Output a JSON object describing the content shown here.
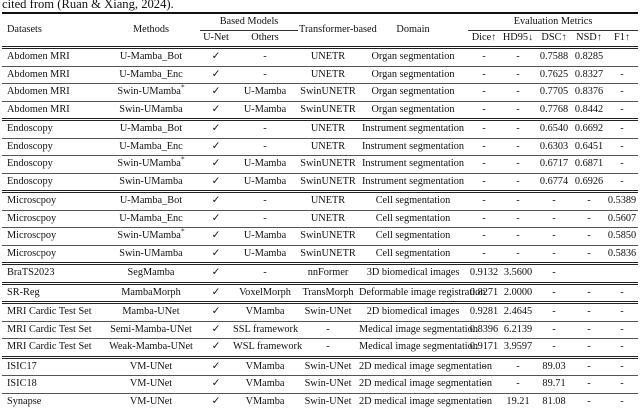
{
  "caption": "cited from (Ruan & Xiang, 2024).",
  "table": {
    "header": {
      "datasets": "Datasets",
      "methods": "Methods",
      "based_models": "Based Models",
      "unet": "U-Net",
      "others": "Others",
      "transformer": "Transformer-based",
      "domain": "Domain",
      "eval_metrics": "Evaluation Metrics",
      "dice": "Dice↑",
      "hd95": "HD95↓",
      "dsc": "DSC↑",
      "nsd": "NSD↑",
      "f1": "F1↑"
    },
    "col_keys": [
      "dataset",
      "method",
      "unet",
      "others",
      "transformer",
      "domain",
      "dice",
      "hd95",
      "dsc",
      "nsd",
      "f1"
    ],
    "checkmark": "✓",
    "rows": [
      {
        "dataset": "Abdomen MRI",
        "method": "U-Mamba_Bot",
        "method_sup": "",
        "unet": "✓",
        "others": "-",
        "transformer": "UNETR",
        "domain": "Organ segmentation",
        "dice": "-",
        "hd95": "-",
        "dsc": "0.7588",
        "nsd": "0.8285",
        "f1": "",
        "group_start": true
      },
      {
        "dataset": "Abdomen MRI",
        "method": "U-Mamba_Enc",
        "method_sup": "",
        "unet": "✓",
        "others": "-",
        "transformer": "UNETR",
        "domain": "Organ segmentation",
        "dice": "-",
        "hd95": "-",
        "dsc": "0.7625",
        "nsd": "0.8327",
        "f1": "-",
        "group_start": false
      },
      {
        "dataset": "Abdomen MRI",
        "method": "Swin-UMamba",
        "method_sup": "*",
        "unet": "✓",
        "others": "U-Mamba",
        "transformer": "SwinUNETR",
        "domain": "Organ segmentation",
        "dice": "-",
        "hd95": "-",
        "dsc": "0.7705",
        "nsd": "0.8376",
        "f1": "-",
        "group_start": false
      },
      {
        "dataset": "Abdomen MRI",
        "method": "Swin-UMamba",
        "method_sup": "",
        "unet": "✓",
        "others": "U-Mamba",
        "transformer": "SwinUNETR",
        "domain": "Organ segmentation",
        "dice": "-",
        "hd95": "-",
        "dsc": "0.7768",
        "nsd": "0.8442",
        "f1": "-",
        "group_start": false
      },
      {
        "dataset": "Endoscopy",
        "method": "U-Mamba_Bot",
        "method_sup": "",
        "unet": "✓",
        "others": "-",
        "transformer": "UNETR",
        "domain": "Instrument segmentation",
        "dice": "-",
        "hd95": "-",
        "dsc": "0.6540",
        "nsd": "0.6692",
        "f1": "-",
        "group_start": true
      },
      {
        "dataset": "Endoscopy",
        "method": "U-Mamba_Enc",
        "method_sup": "",
        "unet": "✓",
        "others": "-",
        "transformer": "UNETR",
        "domain": "Instrument segmentation",
        "dice": "-",
        "hd95": "-",
        "dsc": "0.6303",
        "nsd": "0.6451",
        "f1": "-",
        "group_start": false
      },
      {
        "dataset": "Endoscopy",
        "method": "Swin-UMamba",
        "method_sup": "*",
        "unet": "✓",
        "others": "U-Mamba",
        "transformer": "SwinUNETR",
        "domain": "Instrument segmentation",
        "dice": "-",
        "hd95": "-",
        "dsc": "0.6717",
        "nsd": "0.6871",
        "f1": "-",
        "group_start": false
      },
      {
        "dataset": "Endoscopy",
        "method": "Swin-UMamba",
        "method_sup": "",
        "unet": "✓",
        "others": "U-Mamba",
        "transformer": "SwinUNETR",
        "domain": "Instrument segmentation",
        "dice": "-",
        "hd95": "-",
        "dsc": "0.6774",
        "nsd": "0.6926",
        "f1": "-",
        "group_start": false
      },
      {
        "dataset": "Microscpoy",
        "method": "U-Mamba_Bot",
        "method_sup": "",
        "unet": "✓",
        "others": "-",
        "transformer": "UNETR",
        "domain": "Cell segmentation",
        "dice": "-",
        "hd95": "-",
        "dsc": "-",
        "nsd": "-",
        "f1": "0.5389",
        "group_start": true
      },
      {
        "dataset": "Microscpoy",
        "method": "U-Mamba_Enc",
        "method_sup": "",
        "unet": "✓",
        "others": "-",
        "transformer": "UNETR",
        "domain": "Cell segmentation",
        "dice": "-",
        "hd95": "-",
        "dsc": "-",
        "nsd": "-",
        "f1": "0.5607",
        "group_start": false
      },
      {
        "dataset": "Microscpoy",
        "method": "Swin-UMamba",
        "method_sup": "*",
        "unet": "✓",
        "others": "U-Mamba",
        "transformer": "SwinUNETR",
        "domain": "Cell segmentation",
        "dice": "-",
        "hd95": "-",
        "dsc": "-",
        "nsd": "-",
        "f1": "0.5850",
        "group_start": false
      },
      {
        "dataset": "Microscpoy",
        "method": "Swin-UMamba",
        "method_sup": "",
        "unet": "✓",
        "others": "U-Mamba",
        "transformer": "SwinUNETR",
        "domain": "Cell segmentation",
        "dice": "-",
        "hd95": "-",
        "dsc": "-",
        "nsd": "-",
        "f1": "0.5836",
        "group_start": false
      },
      {
        "dataset": "BraTS2023",
        "method": "SegMamba",
        "method_sup": "",
        "unet": "✓",
        "others": "-",
        "transformer": "nnFormer",
        "domain": "3D biomedical images",
        "dice": "0.9132",
        "hd95": "3.5600",
        "dsc": "-",
        "nsd": "",
        "f1": "",
        "group_start": true
      },
      {
        "dataset": "SR-Reg",
        "method": "MambaMorph",
        "method_sup": "",
        "unet": "✓",
        "others": "VoxelMorph",
        "transformer": "TransMorph",
        "domain": "Deformable image registration",
        "dice": "0.8271",
        "hd95": "2.0000",
        "dsc": "-",
        "nsd": "-",
        "f1": "-",
        "group_start": true
      },
      {
        "dataset": "MRI Cardic Test Set",
        "method": "Mamba-UNet",
        "method_sup": "",
        "unet": "✓",
        "others": "VMamba",
        "transformer": "Swin-UNet",
        "domain": "2D biomedical images",
        "dice": "0.9281",
        "hd95": "2.4645",
        "dsc": "-",
        "nsd": "-",
        "f1": "-",
        "group_start": true
      },
      {
        "dataset": "MRI Cardic Test Set",
        "method": "Semi-Mamba-UNet",
        "method_sup": "",
        "unet": "✓",
        "others": "SSL framework",
        "transformer": "-",
        "domain": "Medical image segmentation",
        "dice": "0.8396",
        "hd95": "6.2139",
        "dsc": "-",
        "nsd": "-",
        "f1": "-",
        "group_start": false
      },
      {
        "dataset": "MRI Cardic Test Set",
        "method": "Weak-Mamba-UNet",
        "method_sup": "",
        "unet": "✓",
        "others": "WSL framework",
        "transformer": "-",
        "domain": "Medical image segmentation",
        "dice": "0.9171",
        "hd95": "3.9597",
        "dsc": "-",
        "nsd": "-",
        "f1": "-",
        "group_start": false
      },
      {
        "dataset": "ISIC17",
        "method": "VM-UNet",
        "method_sup": "",
        "unet": "✓",
        "others": "VMamba",
        "transformer": "Swin-UNet",
        "domain": "2D medical image segmentation",
        "dice": "-",
        "hd95": "-",
        "dsc": "89.03",
        "nsd": "-",
        "f1": "-",
        "group_start": true
      },
      {
        "dataset": "ISIC18",
        "method": "VM-UNet",
        "method_sup": "",
        "unet": "✓",
        "others": "VMamba",
        "transformer": "Swin-UNet",
        "domain": "2D medical image segmentation",
        "dice": "-",
        "hd95": "-",
        "dsc": "89.71",
        "nsd": "-",
        "f1": "-",
        "group_start": false
      },
      {
        "dataset": "Synapse",
        "method": "VM-UNet",
        "method_sup": "",
        "unet": "✓",
        "others": "VMamba",
        "transformer": "Swin-UNet",
        "domain": "2D medical image segmentation",
        "dice": "-",
        "hd95": "19.21",
        "dsc": "81.08",
        "nsd": "-",
        "f1": "-",
        "group_start": false
      }
    ]
  }
}
